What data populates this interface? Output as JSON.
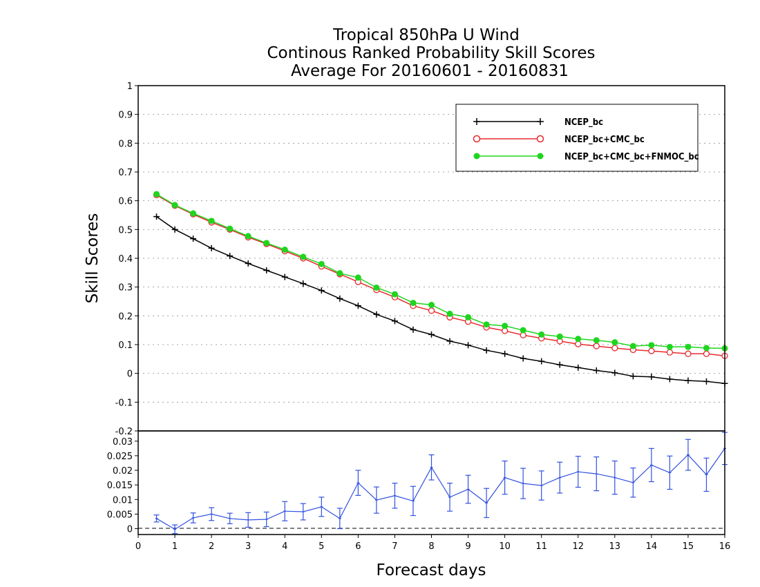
{
  "title_lines": [
    "Tropical 850hPa U Wind",
    "Continous Ranked Probability Skill Scores",
    "Average For 20160601 - 20160831"
  ],
  "chart_data": [
    {
      "type": "line",
      "ylabel": "Skill Scores",
      "ylim": [
        -0.2,
        1.0
      ],
      "yticks": [
        "1",
        "0.9",
        "0.8",
        "0.7",
        "0.6",
        "0.5",
        "0.4",
        "0.3",
        "0.2",
        "0.1",
        "0",
        "-0.1",
        "-0.2"
      ],
      "ytick_values": [
        1.0,
        0.9,
        0.8,
        0.7,
        0.6,
        0.5,
        0.4,
        0.3,
        0.2,
        0.1,
        0.0,
        -0.1,
        -0.2
      ],
      "xlim": [
        0,
        16
      ],
      "grid": true,
      "legend_position": "top-right",
      "x": [
        0.5,
        1.0,
        1.5,
        2.0,
        2.5,
        3.0,
        3.5,
        4.0,
        4.5,
        5.0,
        5.5,
        6.0,
        6.5,
        7.0,
        7.5,
        8.0,
        8.5,
        9.0,
        9.5,
        10.0,
        10.5,
        11.0,
        11.5,
        12.0,
        12.5,
        13.0,
        13.5,
        14.0,
        14.5,
        15.0,
        15.5,
        16.0
      ],
      "series": [
        {
          "name": "NCEP_bc",
          "color": "#000000",
          "marker": "plus",
          "values": [
            0.545,
            0.5,
            0.468,
            0.435,
            0.408,
            0.382,
            0.358,
            0.335,
            0.312,
            0.288,
            0.26,
            0.235,
            0.205,
            0.182,
            0.152,
            0.135,
            0.112,
            0.098,
            0.08,
            0.068,
            0.052,
            0.042,
            0.03,
            0.02,
            0.01,
            0.002,
            -0.01,
            -0.012,
            -0.02,
            -0.025,
            -0.028,
            -0.035
          ]
        },
        {
          "name": "NCEP_bc+CMC_bc",
          "color": "#e8282e",
          "marker": "open-circle",
          "values": [
            0.62,
            0.583,
            0.553,
            0.525,
            0.5,
            0.473,
            0.45,
            0.425,
            0.4,
            0.372,
            0.345,
            0.318,
            0.29,
            0.265,
            0.235,
            0.218,
            0.195,
            0.18,
            0.16,
            0.148,
            0.133,
            0.122,
            0.112,
            0.102,
            0.095,
            0.088,
            0.082,
            0.078,
            0.073,
            0.068,
            0.068,
            0.061
          ]
        },
        {
          "name": "NCEP_bc+CMC_bc+FNMOC_bc",
          "color": "#1fd51f",
          "marker": "filled-circle",
          "values": [
            0.623,
            0.585,
            0.556,
            0.53,
            0.503,
            0.477,
            0.453,
            0.43,
            0.405,
            0.38,
            0.348,
            0.333,
            0.298,
            0.275,
            0.245,
            0.238,
            0.207,
            0.195,
            0.17,
            0.165,
            0.15,
            0.135,
            0.128,
            0.12,
            0.115,
            0.108,
            0.095,
            0.098,
            0.092,
            0.092,
            0.088,
            0.087
          ]
        }
      ]
    },
    {
      "type": "line",
      "ylim": [
        -0.002,
        0.0335
      ],
      "yticks": [
        "0.03",
        "0.025",
        "0.02",
        "0.015",
        "0.01",
        "0.005",
        "0"
      ],
      "ytick_values": [
        0.03,
        0.025,
        0.02,
        0.015,
        0.01,
        0.005,
        0.0
      ],
      "xlabel": "Forecast days",
      "xlim": [
        0,
        16
      ],
      "xticks": [
        "0",
        "1",
        "2",
        "3",
        "4",
        "5",
        "6",
        "7",
        "8",
        "9",
        "10",
        "11",
        "12",
        "13",
        "14",
        "15",
        "16"
      ],
      "xtick_values": [
        0,
        1,
        2,
        3,
        4,
        5,
        6,
        7,
        8,
        9,
        10,
        11,
        12,
        13,
        14,
        15,
        16
      ],
      "x": [
        0.5,
        1.0,
        1.5,
        2.0,
        2.5,
        3.0,
        3.5,
        4.0,
        4.5,
        5.0,
        5.5,
        6.0,
        6.5,
        7.0,
        7.5,
        8.0,
        8.5,
        9.0,
        9.5,
        10.0,
        10.5,
        11.0,
        11.5,
        12.0,
        12.5,
        13.0,
        13.5,
        14.0,
        14.5,
        15.0,
        15.5,
        16.0
      ],
      "series": [
        {
          "color": "#3050e0",
          "marker": "error-bar",
          "values": [
            0.0035,
            -0.0002,
            0.0037,
            0.005,
            0.0035,
            0.003,
            0.0032,
            0.006,
            0.0058,
            0.0075,
            0.0035,
            0.0157,
            0.0098,
            0.0113,
            0.0095,
            0.021,
            0.0108,
            0.0135,
            0.0088,
            0.0175,
            0.0155,
            0.0148,
            0.0175,
            0.0195,
            0.0188,
            0.0175,
            0.0158,
            0.0218,
            0.0192,
            0.0253,
            0.0185,
            0.0275
          ],
          "errors": [
            0.0012,
            0.0015,
            0.0017,
            0.0022,
            0.0018,
            0.0025,
            0.0025,
            0.0033,
            0.0028,
            0.0033,
            0.0035,
            0.0043,
            0.0045,
            0.0043,
            0.005,
            0.0043,
            0.0048,
            0.0048,
            0.005,
            0.0057,
            0.0052,
            0.005,
            0.0053,
            0.0053,
            0.0058,
            0.0057,
            0.005,
            0.0057,
            0.0057,
            0.0053,
            0.0057,
            0.0055
          ]
        }
      ]
    }
  ]
}
